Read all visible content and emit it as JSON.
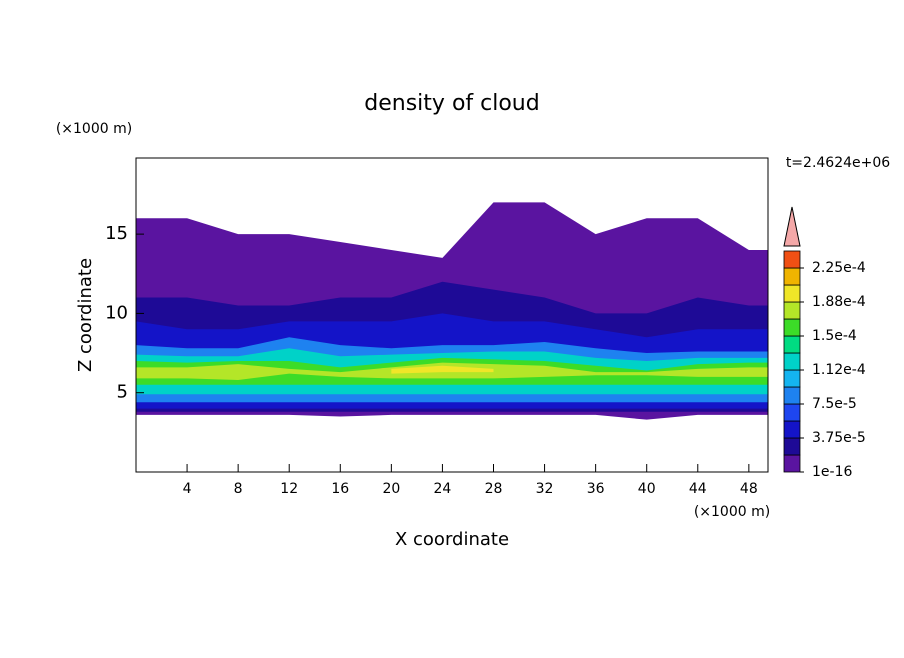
{
  "chart_data": {
    "type": "contour",
    "title": "density of cloud",
    "x_label": "X coordinate",
    "y_label": "Z coordinate",
    "x_unit": "(×1000 m)",
    "y_unit": "(×1000 m)",
    "time_label": "t=2.4624e+06",
    "xlim": [
      0,
      49.5
    ],
    "ylim": [
      0,
      19.8
    ],
    "xticks": [
      4,
      8,
      12,
      16,
      20,
      24,
      28,
      32,
      36,
      40,
      44,
      48
    ],
    "yticks": [
      5,
      10,
      15
    ],
    "levels": [
      1e-16,
      1.875e-05,
      3.75e-05,
      5.625e-05,
      7.5e-05,
      9.375e-05,
      0.0001125,
      0.00013125,
      0.00015,
      0.00016875,
      0.0001875,
      0.00020625,
      0.000225
    ],
    "colors": [
      "#5a14a0",
      "#1e0a96",
      "#1414c8",
      "#1e46f0",
      "#1e82f0",
      "#14b4f0",
      "#00d2c8",
      "#00dc82",
      "#3cdc28",
      "#b4e628",
      "#f0e628",
      "#f0b400",
      "#f05014"
    ],
    "colorbar_ticks": [
      {
        "value": 1e-16,
        "label": "1e-16"
      },
      {
        "value": 3.75e-05,
        "label": "3.75e-5"
      },
      {
        "value": 7.5e-05,
        "label": "7.5e-5"
      },
      {
        "value": 0.0001125,
        "label": "1.12e-4"
      },
      {
        "value": 0.00015,
        "label": "1.5e-4"
      },
      {
        "value": 0.0001875,
        "label": "1.88e-4"
      },
      {
        "value": 0.000225,
        "label": "2.25e-4"
      }
    ],
    "x": [
      0,
      4,
      8,
      12,
      16,
      20,
      24,
      28,
      32,
      36,
      40,
      44,
      48,
      49.5
    ],
    "bands": [
      {
        "level": 1e-16,
        "bottom": [
          3.6,
          3.6,
          3.6,
          3.6,
          3.5,
          3.6,
          3.6,
          3.6,
          3.6,
          3.6,
          3.3,
          3.6,
          3.6,
          3.6
        ],
        "top": [
          16,
          16,
          15,
          15,
          14.5,
          14,
          13.5,
          17,
          17,
          15,
          16,
          16,
          14,
          14
        ]
      },
      {
        "level": 1.875e-05,
        "bottom": [
          3.8,
          3.8,
          3.8,
          3.8,
          3.8,
          3.8,
          3.8,
          3.8,
          3.8,
          3.8,
          3.8,
          3.8,
          3.8,
          3.8
        ],
        "top": [
          11,
          11,
          10.5,
          10.5,
          11,
          11,
          12,
          11.5,
          11,
          10,
          10,
          11,
          10.5,
          10.5
        ]
      },
      {
        "level": 3.75e-05,
        "bottom": [
          4,
          4,
          4,
          4,
          4,
          4,
          4,
          4,
          4,
          4,
          4,
          4,
          4,
          4
        ],
        "top": [
          9.5,
          9,
          9,
          9.5,
          9.5,
          9.5,
          10,
          9.5,
          9.5,
          9,
          8.5,
          9,
          9,
          9
        ]
      },
      {
        "level": 7.5e-05,
        "bottom": [
          4.4,
          4.4,
          4.4,
          4.4,
          4.4,
          4.4,
          4.4,
          4.4,
          4.4,
          4.4,
          4.4,
          4.4,
          4.4,
          4.4
        ],
        "top": [
          8,
          7.8,
          7.8,
          8.5,
          8,
          7.8,
          8,
          8,
          8.2,
          7.8,
          7.5,
          7.6,
          7.6,
          7.6
        ]
      },
      {
        "level": 0.0001125,
        "bottom": [
          4.9,
          4.9,
          4.9,
          4.9,
          4.9,
          4.9,
          4.9,
          4.9,
          4.9,
          4.9,
          4.9,
          4.9,
          4.9,
          4.9
        ],
        "top": [
          7.4,
          7.3,
          7.3,
          7.8,
          7.3,
          7.4,
          7.5,
          7.6,
          7.6,
          7.2,
          7,
          7.2,
          7.2,
          7.2
        ]
      },
      {
        "level": 0.00015,
        "bottom": [
          5.5,
          5.5,
          5.5,
          5.5,
          5.5,
          5.5,
          5.5,
          5.5,
          5.5,
          5.5,
          5.5,
          5.5,
          5.5,
          5.5
        ],
        "top": [
          7,
          6.9,
          7,
          7,
          6.6,
          6.9,
          7.2,
          7.1,
          7,
          6.7,
          6.4,
          6.8,
          6.9,
          6.9
        ]
      },
      {
        "level": 0.00016875,
        "bottom": [
          5.9,
          5.9,
          5.8,
          6.2,
          6,
          5.9,
          5.9,
          5.9,
          6,
          6.1,
          6.1,
          6,
          6,
          6
        ],
        "top": [
          6.6,
          6.6,
          6.8,
          6.5,
          6.3,
          6.6,
          6.9,
          6.8,
          6.7,
          6.3,
          6.3,
          6.5,
          6.6,
          6.6
        ]
      },
      {
        "level": 0.0001875,
        "bottom": [
          null,
          null,
          null,
          null,
          null,
          6.2,
          6.3,
          6.3,
          null,
          null,
          null,
          null,
          null,
          null
        ],
        "top": [
          null,
          null,
          null,
          null,
          null,
          6.5,
          6.7,
          6.5,
          null,
          null,
          null,
          null,
          null,
          null
        ]
      }
    ]
  }
}
